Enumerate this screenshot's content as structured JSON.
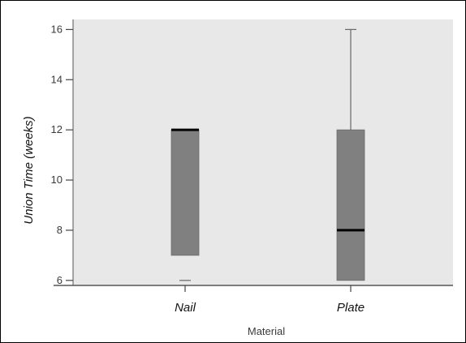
{
  "chart_data": {
    "type": "boxplot",
    "title": "",
    "xlabel": "Material",
    "ylabel": "Union Time (weeks)",
    "categories": [
      "Nail",
      "Plate"
    ],
    "ylim": [
      5.8,
      16.4
    ],
    "y_ticks": [
      {
        "value": 6,
        "label": "6"
      },
      {
        "value": 8,
        "label": "8"
      },
      {
        "value": 10,
        "label": "10"
      },
      {
        "value": 12,
        "label": "12"
      },
      {
        "value": 14,
        "label": "14"
      },
      {
        "value": 16,
        "label": "16"
      }
    ],
    "boxes": [
      {
        "category": "Nail",
        "min": 6,
        "q1": 7,
        "median": 12,
        "q3": 12,
        "max": 12
      },
      {
        "category": "Plate",
        "min": 6,
        "q1": 6,
        "median": 8,
        "q3": 12,
        "max": 16
      }
    ],
    "grid": false,
    "legend": "none",
    "colors": {
      "plot_background": "#e8e8e8",
      "box_fill": "#808080",
      "median_line": "#000000",
      "whisker": "#666666",
      "axis": "#555555"
    }
  }
}
